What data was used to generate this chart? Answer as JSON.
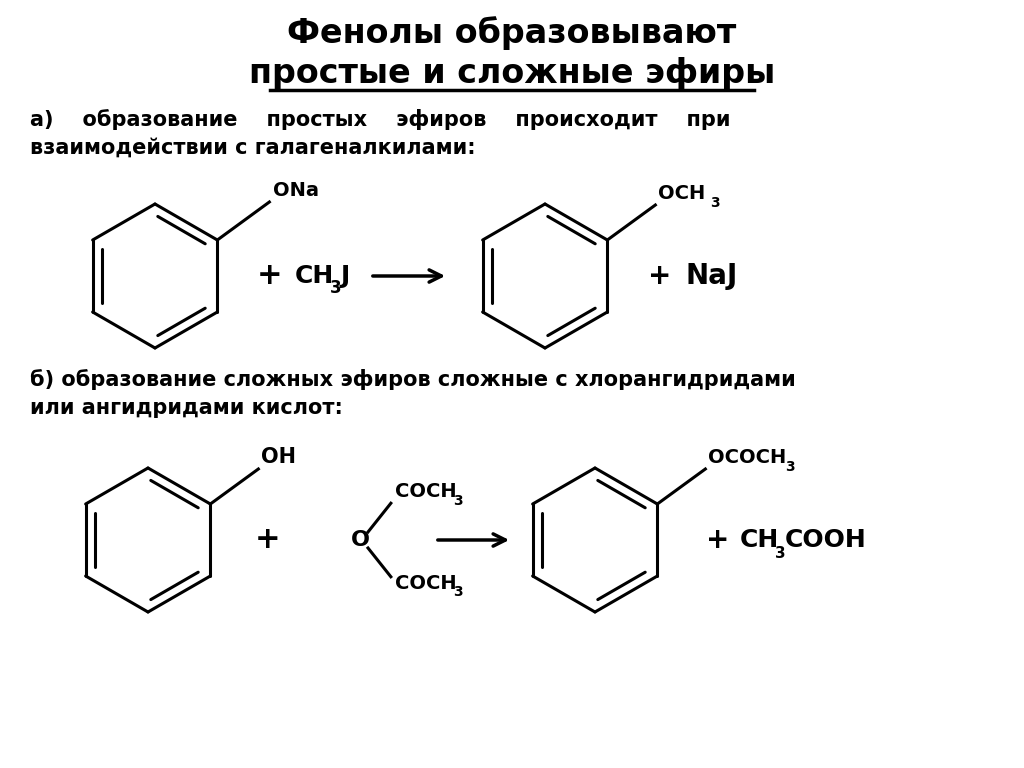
{
  "title_line1": "Фенолы образовывают",
  "title_line2": "простые и сложные эфиры",
  "text_a_line1": "а)    образование    простых    эфиров    происходит    при",
  "text_a_line2": "взаимодействии с галагеналкилами:",
  "text_b_line1": "б) образование сложных эфиров сложные с хлорангидридами",
  "text_b_line2": "или ангидридами кислот:",
  "bg_color": "#ffffff",
  "text_color": "#000000",
  "lw": 2.2
}
